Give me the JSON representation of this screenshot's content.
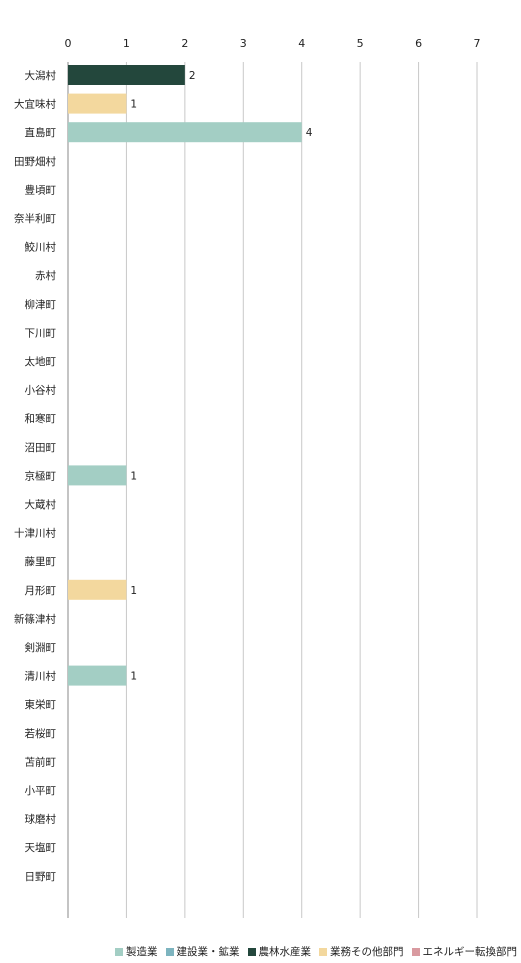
{
  "chart_data": {
    "type": "bar",
    "orientation": "horizontal",
    "stacked": true,
    "xlim": [
      0,
      7
    ],
    "xticks": [
      "0",
      "1",
      "2",
      "3",
      "4",
      "5",
      "6",
      "7"
    ],
    "categories": [
      "大潟村",
      "大宜味村",
      "直島町",
      "田野畑村",
      "豊頃町",
      "奈半利町",
      "鮫川村",
      "赤村",
      "柳津町",
      "下川町",
      "太地町",
      "小谷村",
      "和寒町",
      "沼田町",
      "京極町",
      "大蔵村",
      "十津川村",
      "藤里町",
      "月形町",
      "新篠津村",
      "剣淵町",
      "清川村",
      "東栄町",
      "若桜町",
      "苫前町",
      "小平町",
      "球磨村",
      "天塩町",
      "日野町"
    ],
    "series": [
      {
        "name": "製造業",
        "color": "#a3cec4",
        "values": [
          0,
          0,
          4,
          0,
          0,
          0,
          0,
          0,
          0,
          0,
          0,
          0,
          0,
          0,
          1,
          0,
          0,
          0,
          0,
          0,
          0,
          1,
          0,
          0,
          0,
          0,
          0,
          0,
          0
        ]
      },
      {
        "name": "建設業・鉱業",
        "color": "#7db4bf",
        "values": [
          0,
          0,
          0,
          0,
          0,
          0,
          0,
          0,
          0,
          0,
          0,
          0,
          0,
          0,
          0,
          0,
          0,
          0,
          0,
          0,
          0,
          0,
          0,
          0,
          0,
          0,
          0,
          0,
          0
        ]
      },
      {
        "name": "農林水産業",
        "color": "#23473c",
        "values": [
          2,
          0,
          0,
          0,
          0,
          0,
          0,
          0,
          0,
          0,
          0,
          0,
          0,
          0,
          0,
          0,
          0,
          0,
          0,
          0,
          0,
          0,
          0,
          0,
          0,
          0,
          0,
          0,
          0
        ]
      },
      {
        "name": "業務その他部門",
        "color": "#f3d89e",
        "values": [
          0,
          1,
          0,
          0,
          0,
          0,
          0,
          0,
          0,
          0,
          0,
          0,
          0,
          0,
          0,
          0,
          0,
          0,
          1,
          0,
          0,
          0,
          0,
          0,
          0,
          0,
          0,
          0,
          0
        ]
      },
      {
        "name": "エネルギー転換部門",
        "color": "#d99aa0",
        "values": [
          0,
          0,
          0,
          0,
          0,
          0,
          0,
          0,
          0,
          0,
          0,
          0,
          0,
          0,
          0,
          0,
          0,
          0,
          0,
          0,
          0,
          0,
          0,
          0,
          0,
          0,
          0,
          0,
          0
        ]
      }
    ],
    "data_labels": [
      "2",
      "1",
      "4",
      "",
      "",
      "",
      "",
      "",
      "",
      "",
      "",
      "",
      "",
      "",
      "1",
      "",
      "",
      "",
      "1",
      "",
      "",
      "1",
      "",
      "",
      "",
      "",
      "",
      "",
      ""
    ],
    "legend_position": "bottom-right",
    "grid": true
  }
}
